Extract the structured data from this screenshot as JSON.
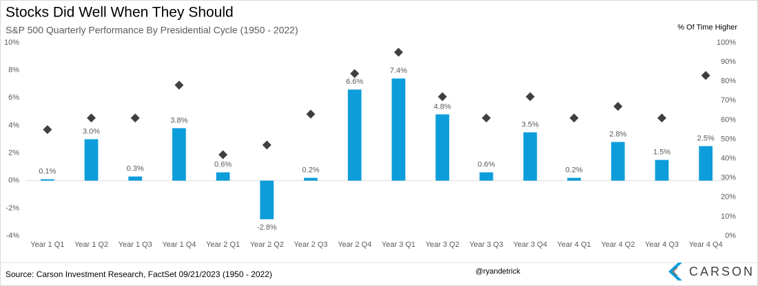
{
  "chart_data": {
    "type": "bar",
    "title": "Stocks Did Well When They Should",
    "subtitle": "S&P 500 Quarterly Performance By Presidential Cycle (1950 - 2022)",
    "y2label": "% Of Time Higher",
    "categories": [
      "Year 1 Q1",
      "Year 1 Q2",
      "Year 1 Q3",
      "Year 1 Q4",
      "Year 2 Q1",
      "Year 2 Q2",
      "Year 2 Q3",
      "Year 2 Q4",
      "Year 3 Q1",
      "Year 3 Q2",
      "Year 3 Q3",
      "Year 3 Q4",
      "Year 4 Q1",
      "Year 4 Q2",
      "Year 4 Q3",
      "Year 4 Q4"
    ],
    "series": [
      {
        "color": "#0d9ddb",
        "values": [
          0.1,
          3.0,
          0.3,
          3.8,
          0.6,
          -2.8,
          0.2,
          6.6,
          7.4,
          4.8,
          0.6,
          3.5,
          0.2,
          2.8,
          1.5,
          2.5
        ],
        "value_labels": [
          "0.1%",
          "3.0%",
          "0.3%",
          "3.8%",
          "0.6%",
          "-2.8%",
          "0.2%",
          "6.6%",
          "7.4%",
          "4.8%",
          "0.6%",
          "3.5%",
          "0.2%",
          "2.8%",
          "1.5%",
          "2.5%"
        ]
      },
      {
        "axis": "y2",
        "marker": "diamond",
        "color": "#404040",
        "values": [
          55,
          61,
          61,
          78,
          42,
          47,
          63,
          84,
          95,
          72,
          61,
          72,
          61,
          67,
          61,
          83
        ]
      }
    ],
    "ylim": [
      -4,
      10
    ],
    "yticks": [
      {
        "value": -4,
        "label": "-4%"
      },
      {
        "value": -2,
        "label": "-2%"
      },
      {
        "value": 0,
        "label": "0%"
      },
      {
        "value": 2,
        "label": "2%"
      },
      {
        "value": 4,
        "label": "4%"
      },
      {
        "value": 6,
        "label": "6%"
      },
      {
        "value": 8,
        "label": "8%"
      },
      {
        "value": 10,
        "label": "10%"
      }
    ],
    "y2lim": [
      0,
      100
    ],
    "y2ticks": [
      {
        "value": 0,
        "label": "0%"
      },
      {
        "value": 10,
        "label": "10%"
      },
      {
        "value": 20,
        "label": "20%"
      },
      {
        "value": 30,
        "label": "30%"
      },
      {
        "value": 40,
        "label": "40%"
      },
      {
        "value": 50,
        "label": "50%"
      },
      {
        "value": 60,
        "label": "60%"
      },
      {
        "value": 70,
        "label": "70%"
      },
      {
        "value": 80,
        "label": "80%"
      },
      {
        "value": 90,
        "label": "90%"
      },
      {
        "value": 100,
        "label": "100%"
      }
    ],
    "zero_line": true,
    "source": "Source: Carson Investment Research, FactSet 09/21/2023 (1950 - 2022)",
    "handle": "@ryandetrick",
    "logo": "CARSON"
  }
}
